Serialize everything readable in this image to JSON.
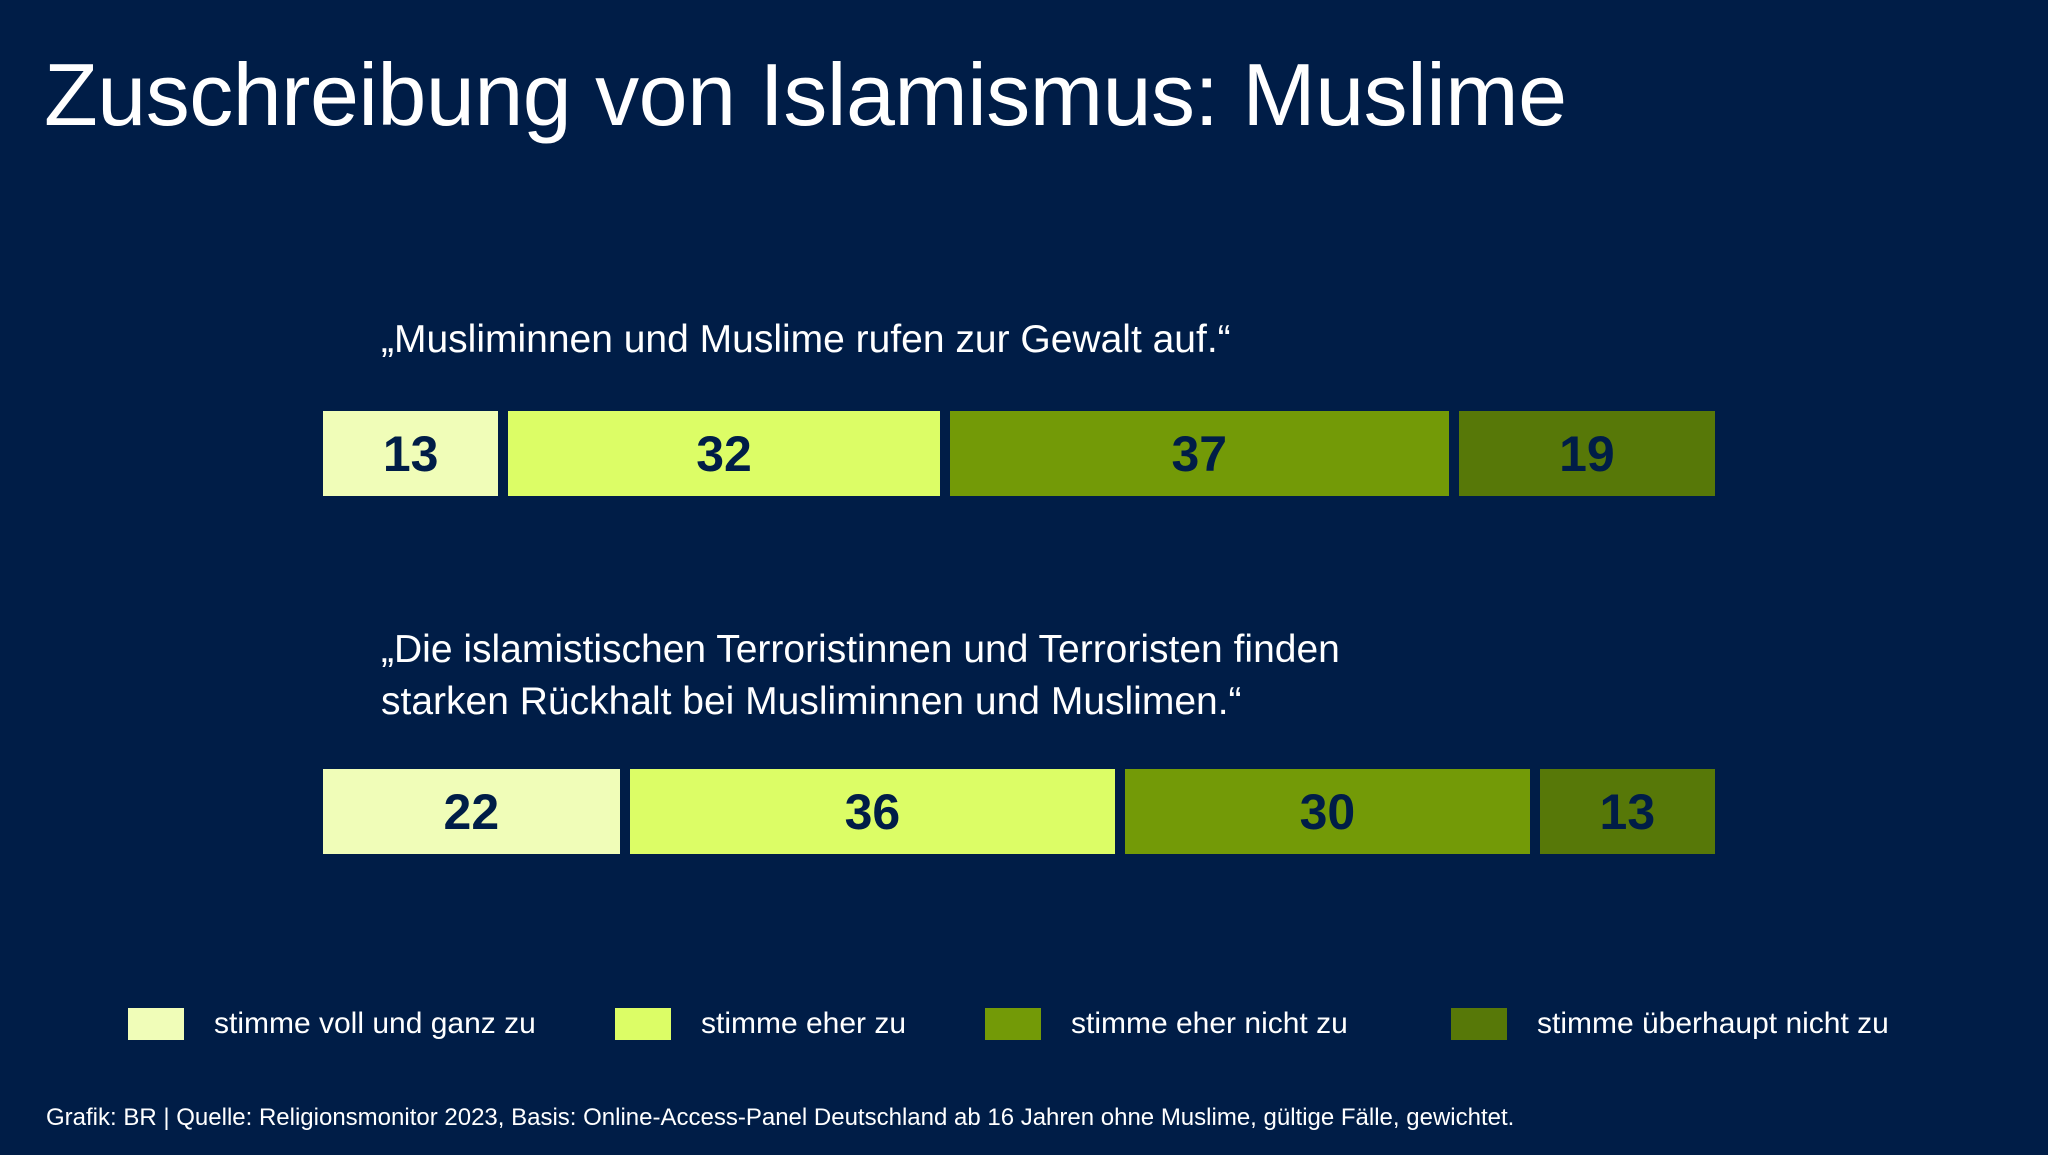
{
  "title": "Zuschreibung von Islamismus: Muslime",
  "chart_data": {
    "type": "bar",
    "orientation": "horizontal-stacked",
    "categories": [
      "„Musliminnen und Muslime rufen zur Gewalt auf.“",
      "„Die islamistischen Terroristinnen und Terroristen finden\nstarken Rückhalt bei Musliminnen und Muslimen.“"
    ],
    "series": [
      {
        "name": "stimme voll und ganz zu",
        "values": [
          13,
          22
        ],
        "color": "#f0fdb8"
      },
      {
        "name": "stimme eher zu",
        "values": [
          32,
          36
        ],
        "color": "#dcfd66"
      },
      {
        "name": "stimme eher nicht zu",
        "values": [
          37,
          30
        ],
        "color": "#739a07"
      },
      {
        "name": "stimme überhaupt nicht zu",
        "values": [
          19,
          13
        ],
        "color": "#577808"
      }
    ],
    "legend_position": "bottom",
    "grid": false
  },
  "footer": "Grafik: BR | Quelle: Religionsmonitor 2023, Basis: Online-Access-Panel Deutschland ab 16 Jahren ohne Muslime, gültige Fälle, gewichtet.",
  "colors": {
    "background": "#001d47",
    "text": "#ffffff",
    "value_label": "#001d47"
  }
}
